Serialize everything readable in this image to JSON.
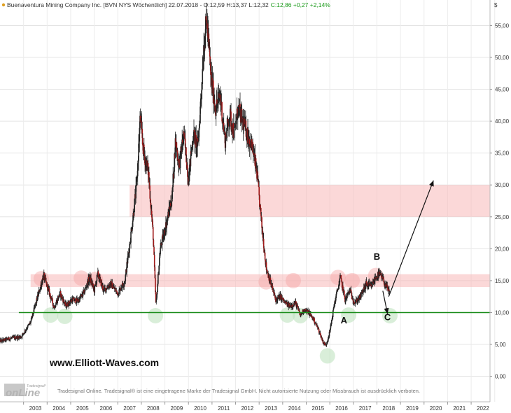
{
  "chart_data": {
    "type": "candlestick",
    "title": "Buenaventura Mining Company Inc. [BVN NYS  Wöchentlich] 22.07.2018 - O:12,59 H:13,37 L:12,32",
    "change": "C:12,86 +0,27 +2,14%",
    "currency_label": "$",
    "ylim": [
      -4,
      59
    ],
    "xlim": [
      2002.0,
      2022.8
    ],
    "y_ticks": [
      0,
      5,
      10,
      15,
      20,
      25,
      30,
      35,
      40,
      45,
      50,
      55
    ],
    "y_tick_labels": [
      "0,00",
      "5,00",
      "10,00",
      "15,00",
      "20,00",
      "25,00",
      "30,00",
      "35,00",
      "40,00",
      "45,00",
      "50,00",
      "55,00"
    ],
    "x_tick_labels": [
      "2003",
      "2004",
      "2005",
      "2006",
      "2007",
      "2008",
      "2009",
      "2010",
      "2011",
      "2012",
      "2013",
      "2014",
      "2015",
      "2016",
      "2017",
      "2018",
      "2019",
      "2020",
      "2021",
      "2022"
    ],
    "grid": true,
    "price_path": [
      [
        2002.0,
        5.5
      ],
      [
        2002.5,
        6.0
      ],
      [
        2002.9,
        6.2
      ],
      [
        2003.3,
        8.5
      ],
      [
        2003.6,
        12.5
      ],
      [
        2003.85,
        15.8
      ],
      [
        2004.1,
        13.0
      ],
      [
        2004.3,
        10.8
      ],
      [
        2004.55,
        13.0
      ],
      [
        2004.8,
        11.0
      ],
      [
        2005.05,
        12.0
      ],
      [
        2005.3,
        11.8
      ],
      [
        2005.55,
        13.0
      ],
      [
        2005.8,
        15.5
      ],
      [
        2006.0,
        13.5
      ],
      [
        2006.15,
        16.0
      ],
      [
        2006.4,
        13.5
      ],
      [
        2006.7,
        14.5
      ],
      [
        2007.0,
        13.0
      ],
      [
        2007.3,
        15.0
      ],
      [
        2007.55,
        22.0
      ],
      [
        2007.8,
        30.0
      ],
      [
        2007.95,
        40.5
      ],
      [
        2008.1,
        35.0
      ],
      [
        2008.3,
        32.0
      ],
      [
        2008.5,
        22.0
      ],
      [
        2008.62,
        11.0
      ],
      [
        2008.8,
        20.0
      ],
      [
        2009.0,
        23.0
      ],
      [
        2009.3,
        28.0
      ],
      [
        2009.45,
        37.0
      ],
      [
        2009.6,
        33.0
      ],
      [
        2009.8,
        38.0
      ],
      [
        2010.0,
        31.0
      ],
      [
        2010.2,
        38.0
      ],
      [
        2010.4,
        36.0
      ],
      [
        2010.55,
        45.0
      ],
      [
        2010.65,
        52.0
      ],
      [
        2010.78,
        56.0
      ],
      [
        2010.95,
        47.0
      ],
      [
        2011.15,
        42.0
      ],
      [
        2011.35,
        44.0
      ],
      [
        2011.55,
        37.0
      ],
      [
        2011.75,
        41.0
      ],
      [
        2011.95,
        38.0
      ],
      [
        2012.1,
        42.0
      ],
      [
        2012.3,
        40.0
      ],
      [
        2012.5,
        38.0
      ],
      [
        2012.7,
        36.0
      ],
      [
        2012.9,
        32.0
      ],
      [
        2013.1,
        24.0
      ],
      [
        2013.3,
        17.0
      ],
      [
        2013.5,
        14.5
      ],
      [
        2013.7,
        12.0
      ],
      [
        2013.9,
        12.5
      ],
      [
        2014.1,
        11.5
      ],
      [
        2014.3,
        11.0
      ],
      [
        2014.55,
        11.5
      ],
      [
        2014.75,
        9.5
      ],
      [
        2014.9,
        10.5
      ],
      [
        2015.1,
        10.0
      ],
      [
        2015.3,
        9.0
      ],
      [
        2015.5,
        7.5
      ],
      [
        2015.7,
        5.5
      ],
      [
        2015.83,
        4.8
      ],
      [
        2016.0,
        7.0
      ],
      [
        2016.2,
        11.5
      ],
      [
        2016.45,
        15.5
      ],
      [
        2016.65,
        12.0
      ],
      [
        2016.85,
        13.5
      ],
      [
        2017.05,
        11.5
      ],
      [
        2017.3,
        12.5
      ],
      [
        2017.55,
        14.5
      ],
      [
        2017.75,
        14.0
      ],
      [
        2017.95,
        15.5
      ],
      [
        2018.1,
        16.0
      ],
      [
        2018.25,
        15.2
      ],
      [
        2018.4,
        14.0
      ],
      [
        2018.55,
        12.9
      ]
    ],
    "bands": [
      {
        "y_from": 14.0,
        "y_to": 16.0,
        "x_from": 2003.3,
        "x_to": 2022.8,
        "color": "#f7b8b8"
      },
      {
        "y_from": 25.0,
        "y_to": 30.0,
        "x_from": 2007.5,
        "x_to": 2022.8,
        "color": "#f7b8b8"
      }
    ],
    "support_line": {
      "y": 10.0,
      "color": "#1a8c1a"
    },
    "resistance_circles": [
      {
        "x": 2003.75,
        "y": 15.3
      },
      {
        "x": 2005.45,
        "y": 15.4
      },
      {
        "x": 2006.05,
        "y": 15.2
      },
      {
        "x": 2013.3,
        "y": 14.8
      },
      {
        "x": 2014.45,
        "y": 15.0
      },
      {
        "x": 2016.35,
        "y": 15.5
      },
      {
        "x": 2016.95,
        "y": 15.0
      },
      {
        "x": 2017.95,
        "y": 15.8
      }
    ],
    "support_circles": [
      {
        "x": 2004.15,
        "y": 9.6
      },
      {
        "x": 2004.75,
        "y": 9.4
      },
      {
        "x": 2008.6,
        "y": 9.5
      },
      {
        "x": 2014.2,
        "y": 9.6
      },
      {
        "x": 2014.75,
        "y": 9.5
      },
      {
        "x": 2015.9,
        "y": 3.2
      },
      {
        "x": 2016.8,
        "y": 9.6
      },
      {
        "x": 2018.55,
        "y": 9.5
      }
    ],
    "wave_labels": [
      {
        "text": "A",
        "x": 2016.6,
        "y": 8.3
      },
      {
        "text": "B",
        "x": 2018.0,
        "y": 18.3
      },
      {
        "text": "C",
        "x": 2018.45,
        "y": 8.8
      }
    ],
    "forecast_arrows": [
      {
        "from": [
          2018.25,
          13.4
        ],
        "to": [
          2018.45,
          9.8
        ]
      },
      {
        "from": [
          2018.5,
          12.5
        ],
        "to": [
          2020.4,
          30.7
        ]
      }
    ]
  },
  "watermark": "www.Elliott-Waves.com",
  "disclaimer": "Tradesignal Online. Tradesignal® ist eine eingetragene Marke der Tradesignal GmbH. Nicht autorisierte Nutzung oder Missbrauch ist ausdrücklich verboten.",
  "logo": {
    "small": "Tradesignal°",
    "big": "onLine"
  }
}
